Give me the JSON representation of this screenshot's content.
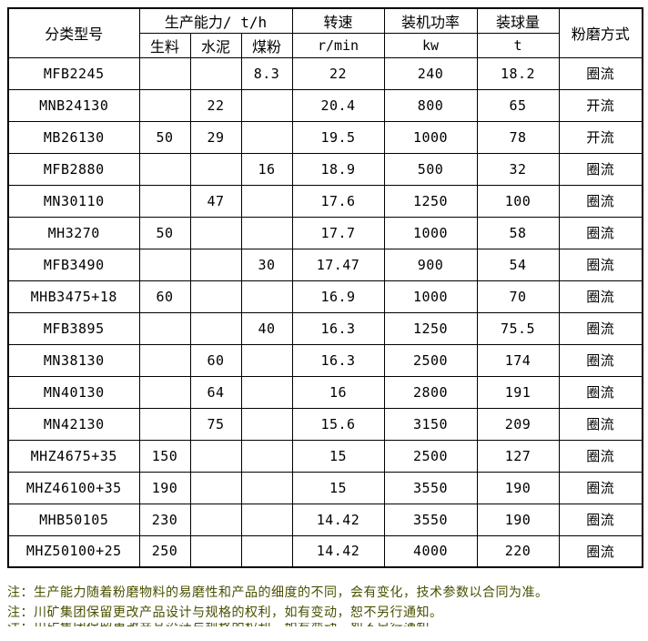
{
  "table": {
    "header": {
      "col_model": "分类型号",
      "col_capacity_group": "生产能力/ t/h",
      "capacity_subcols": [
        "生料",
        "水泥",
        "煤粉"
      ],
      "col_speed": "转速",
      "col_speed_unit": "r/min",
      "col_power": "装机功率",
      "col_power_unit": "kw",
      "col_ball": "装球量",
      "col_ball_unit": "t",
      "col_method": "粉磨方式"
    },
    "rows": [
      {
        "model": "MFB2245",
        "raw": "",
        "cement": "",
        "coal": "8.3",
        "speed": "22",
        "power": "240",
        "ball": "18.2",
        "method": "圈流"
      },
      {
        "model": "MNB24130",
        "raw": "",
        "cement": "22",
        "coal": "",
        "speed": "20.4",
        "power": "800",
        "ball": "65",
        "method": "开流"
      },
      {
        "model": "MB26130",
        "raw": "50",
        "cement": "29",
        "coal": "",
        "speed": "19.5",
        "power": "1000",
        "ball": "78",
        "method": "开流"
      },
      {
        "model": "MFB2880",
        "raw": "",
        "cement": "",
        "coal": "16",
        "speed": "18.9",
        "power": "500",
        "ball": "32",
        "method": "圈流"
      },
      {
        "model": "MN30110",
        "raw": "",
        "cement": "47",
        "coal": "",
        "speed": "17.6",
        "power": "1250",
        "ball": "100",
        "method": "圈流"
      },
      {
        "model": "MH3270",
        "raw": "50",
        "cement": "",
        "coal": "",
        "speed": "17.7",
        "power": "1000",
        "ball": "58",
        "method": "圈流"
      },
      {
        "model": "MFB3490",
        "raw": "",
        "cement": "",
        "coal": "30",
        "speed": "17.47",
        "power": "900",
        "ball": "54",
        "method": "圈流"
      },
      {
        "model": "MHB3475+18",
        "raw": "60",
        "cement": "",
        "coal": "",
        "speed": "16.9",
        "power": "1000",
        "ball": "70",
        "method": "圈流"
      },
      {
        "model": "MFB3895",
        "raw": "",
        "cement": "",
        "coal": "40",
        "speed": "16.3",
        "power": "1250",
        "ball": "75.5",
        "method": "圈流"
      },
      {
        "model": "MN38130",
        "raw": "",
        "cement": "60",
        "coal": "",
        "speed": "16.3",
        "power": "2500",
        "ball": "174",
        "method": "圈流"
      },
      {
        "model": "MN40130",
        "raw": "",
        "cement": "64",
        "coal": "",
        "speed": "16",
        "power": "2800",
        "ball": "191",
        "method": "圈流"
      },
      {
        "model": "MN42130",
        "raw": "",
        "cement": "75",
        "coal": "",
        "speed": "15.6",
        "power": "3150",
        "ball": "209",
        "method": "圈流"
      },
      {
        "model": "MHZ4675+35",
        "raw": "150",
        "cement": "",
        "coal": "",
        "speed": "15",
        "power": "2500",
        "ball": "127",
        "method": "圈流"
      },
      {
        "model": "MHZ46100+35",
        "raw": "190",
        "cement": "",
        "coal": "",
        "speed": "15",
        "power": "3550",
        "ball": "190",
        "method": "圈流"
      },
      {
        "model": "MHB50105",
        "raw": "230",
        "cement": "",
        "coal": "",
        "speed": "14.42",
        "power": "3550",
        "ball": "190",
        "method": "圈流"
      },
      {
        "model": "MHZ50100+25",
        "raw": "250",
        "cement": "",
        "coal": "",
        "speed": "14.42",
        "power": "4000",
        "ball": "220",
        "method": "圈流"
      }
    ]
  },
  "notes": [
    "注：生产能力随着粉磨物料的易磨性和产品的细度的不同，会有变化，技术参数以合同为准。",
    "注：川矿集团保留更改产品设计与规格的权利，如有变动，恕不另行通知。"
  ],
  "colors": {
    "background": "#ffffff",
    "border": "#000000",
    "table_text": "#000000",
    "note_text": "#4a5000"
  }
}
